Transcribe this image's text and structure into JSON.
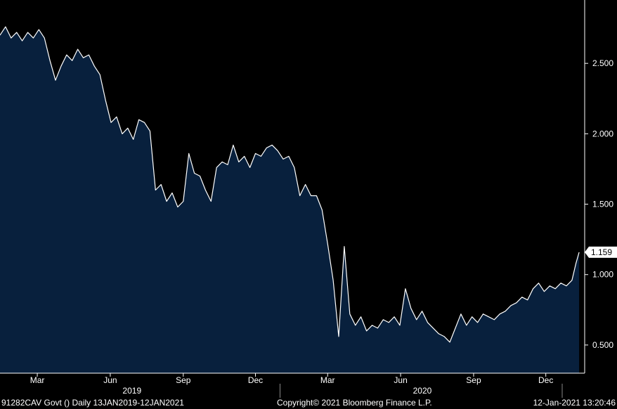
{
  "footer": {
    "security": "91282CAV Govt ()",
    "range": "Daily 13JAN2019-12JAN2021",
    "copyright": "Copyright© 2021 Bloomberg Finance L.P.",
    "timestamp": "12-Jan-2021 13:20:46"
  },
  "chart_data": {
    "type": "area",
    "title": "",
    "xlabel": "",
    "ylabel": "",
    "ylim": [
      0.3,
      2.95
    ],
    "yticks": [
      0.5,
      1.0,
      1.5,
      2.0,
      2.5
    ],
    "ytick_labels": [
      "0.500",
      "1.000",
      "1.500",
      "2.000",
      "2.500"
    ],
    "xticks": [
      {
        "date": "2019-03-01",
        "label": "Mar"
      },
      {
        "date": "2019-06-01",
        "label": "Jun"
      },
      {
        "date": "2019-09-01",
        "label": "Sep"
      },
      {
        "date": "2019-12-01",
        "label": "Dec"
      },
      {
        "date": "2020-03-01",
        "label": "Mar"
      },
      {
        "date": "2020-06-01",
        "label": "Jun"
      },
      {
        "date": "2020-09-01",
        "label": "Sep"
      },
      {
        "date": "2020-12-01",
        "label": "Dec"
      }
    ],
    "years": [
      {
        "label": "2019",
        "date": "2019-07-01"
      },
      {
        "label": "2020",
        "date": "2020-07-01"
      }
    ],
    "last_value": 1.159,
    "last_value_label": "1.159",
    "grid": false,
    "colors": {
      "fill": "#08203d",
      "line": "#ffffff",
      "background": "#000000"
    },
    "series": [
      {
        "x": [
          "2019-01-13",
          "2019-01-20",
          "2019-01-27",
          "2019-02-03",
          "2019-02-10",
          "2019-02-17",
          "2019-02-24",
          "2019-03-03",
          "2019-03-10",
          "2019-03-17",
          "2019-03-24",
          "2019-03-31",
          "2019-04-07",
          "2019-04-14",
          "2019-04-21",
          "2019-04-28",
          "2019-05-05",
          "2019-05-12",
          "2019-05-19",
          "2019-05-26",
          "2019-06-02",
          "2019-06-09",
          "2019-06-16",
          "2019-06-23",
          "2019-06-30",
          "2019-07-07",
          "2019-07-14",
          "2019-07-21",
          "2019-07-28",
          "2019-08-04",
          "2019-08-11",
          "2019-08-18",
          "2019-08-25",
          "2019-09-01",
          "2019-09-08",
          "2019-09-15",
          "2019-09-22",
          "2019-09-29",
          "2019-10-06",
          "2019-10-13",
          "2019-10-20",
          "2019-10-27",
          "2019-11-03",
          "2019-11-10",
          "2019-11-17",
          "2019-11-24",
          "2019-12-01",
          "2019-12-08",
          "2019-12-15",
          "2019-12-22",
          "2019-12-29",
          "2020-01-05",
          "2020-01-12",
          "2020-01-19",
          "2020-01-26",
          "2020-02-02",
          "2020-02-09",
          "2020-02-16",
          "2020-02-23",
          "2020-03-01",
          "2020-03-08",
          "2020-03-15",
          "2020-03-22",
          "2020-03-29",
          "2020-04-05",
          "2020-04-12",
          "2020-04-19",
          "2020-04-26",
          "2020-05-03",
          "2020-05-10",
          "2020-05-17",
          "2020-05-24",
          "2020-05-31",
          "2020-06-07",
          "2020-06-14",
          "2020-06-21",
          "2020-06-28",
          "2020-07-05",
          "2020-07-12",
          "2020-07-19",
          "2020-07-26",
          "2020-08-02",
          "2020-08-09",
          "2020-08-16",
          "2020-08-23",
          "2020-08-30",
          "2020-09-06",
          "2020-09-13",
          "2020-09-20",
          "2020-09-27",
          "2020-10-04",
          "2020-10-11",
          "2020-10-18",
          "2020-10-25",
          "2020-11-01",
          "2020-11-08",
          "2020-11-15",
          "2020-11-22",
          "2020-11-29",
          "2020-12-06",
          "2020-12-13",
          "2020-12-20",
          "2020-12-27",
          "2021-01-03",
          "2021-01-08",
          "2021-01-12"
        ],
        "y": [
          2.7,
          2.76,
          2.68,
          2.72,
          2.66,
          2.72,
          2.68,
          2.74,
          2.68,
          2.52,
          2.38,
          2.48,
          2.56,
          2.52,
          2.6,
          2.54,
          2.56,
          2.48,
          2.42,
          2.24,
          2.08,
          2.12,
          2.0,
          2.04,
          1.96,
          2.1,
          2.08,
          2.02,
          1.6,
          1.64,
          1.52,
          1.58,
          1.48,
          1.52,
          1.86,
          1.72,
          1.7,
          1.6,
          1.52,
          1.76,
          1.8,
          1.78,
          1.92,
          1.8,
          1.84,
          1.76,
          1.86,
          1.84,
          1.9,
          1.92,
          1.88,
          1.82,
          1.84,
          1.76,
          1.56,
          1.64,
          1.56,
          1.56,
          1.46,
          1.22,
          0.96,
          0.56,
          1.2,
          0.72,
          0.64,
          0.7,
          0.6,
          0.64,
          0.62,
          0.68,
          0.66,
          0.7,
          0.64,
          0.9,
          0.76,
          0.68,
          0.74,
          0.66,
          0.62,
          0.58,
          0.56,
          0.52,
          0.62,
          0.72,
          0.64,
          0.7,
          0.66,
          0.72,
          0.7,
          0.68,
          0.72,
          0.74,
          0.78,
          0.8,
          0.84,
          0.82,
          0.9,
          0.94,
          0.88,
          0.92,
          0.9,
          0.94,
          0.92,
          0.96,
          1.08,
          1.159
        ]
      }
    ]
  }
}
